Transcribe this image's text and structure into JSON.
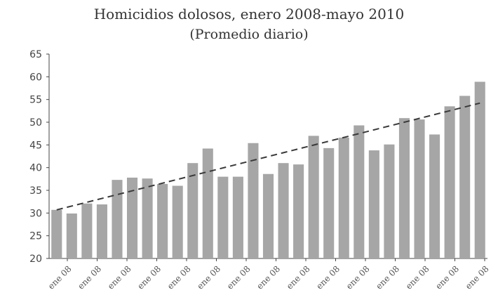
{
  "chart_data": {
    "type": "bar",
    "title": "Homicidios dolosos, enero 2008-mayo 2010",
    "subtitle": "(Promedio diario)",
    "xlabel": "",
    "ylabel": "",
    "ylim": [
      20,
      65
    ],
    "yticks": [
      20,
      25,
      30,
      35,
      40,
      45,
      50,
      55,
      60,
      65
    ],
    "xtick_labels": [
      "ene 08",
      "ene 08",
      "ene 08",
      "ene 08",
      "ene 08",
      "ene 08",
      "ene 08",
      "ene 08",
      "ene 08",
      "ene 08",
      "ene 08",
      "ene 08",
      "ene 08",
      "ene 08",
      "ene 08"
    ],
    "values": [
      30.7,
      29.9,
      32.1,
      31.9,
      37.3,
      37.8,
      37.6,
      36.4,
      36.0,
      41.0,
      44.2,
      38.0,
      38.0,
      45.4,
      38.6,
      41.0,
      40.7,
      47.0,
      44.3,
      46.6,
      49.3,
      43.8,
      45.1,
      50.9,
      50.6,
      47.3,
      53.5,
      55.8,
      58.9
    ],
    "trendline": {
      "style": "dashed",
      "start": 30.7,
      "end": 54.2
    },
    "grid": false,
    "colors": {
      "bar": "#a6a6a6",
      "trend": "#3a3a3a",
      "axis": "#444444"
    }
  }
}
